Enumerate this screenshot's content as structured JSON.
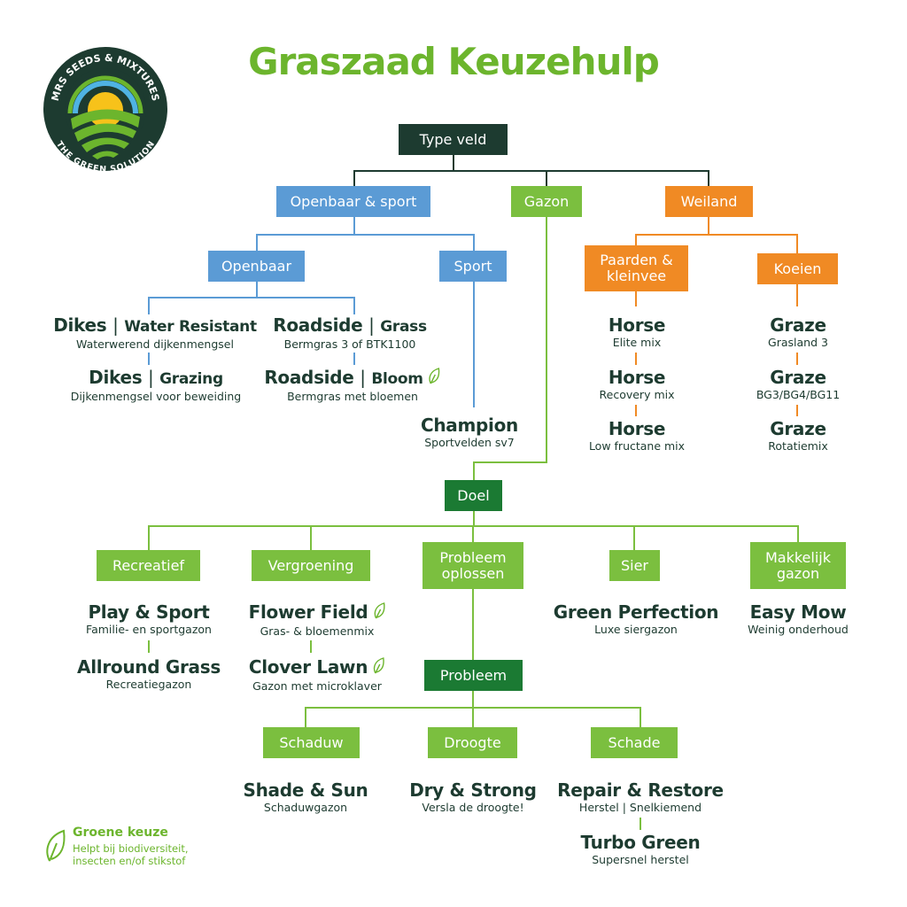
{
  "logo": {
    "text_top": "MRS SEEDS & MIXTURES",
    "text_bottom": "THE GREEN SOLUTION"
  },
  "title": "Graszaad Keuzehulp",
  "colors": {
    "dark": "#1d3b30",
    "blue": "#5b9bd5",
    "orange": "#f08a24",
    "light_green": "#7bbf3f",
    "dark_green": "#1b7a33",
    "title_green": "#6cb52d"
  },
  "boxes": {
    "type_veld": "Type veld",
    "openbaar_sport": "Openbaar & sport",
    "gazon": "Gazon",
    "weiland": "Weiland",
    "openbaar": "Openbaar",
    "sport": "Sport",
    "paarden": "Paarden & kleinvee",
    "koeien": "Koeien",
    "doel": "Doel",
    "recreatief": "Recreatief",
    "vergroening": "Vergroening",
    "probleem_oplossen": "Probleem oplossen",
    "sier": "Sier",
    "makkelijk": "Makkelijk gazon",
    "probleem": "Probleem",
    "schaduw": "Schaduw",
    "droogte": "Droogte",
    "schade": "Schade"
  },
  "products": {
    "dikes_wr": {
      "title": "Dikes",
      "suffix": "Water Resistant",
      "sub": "Waterwerend dijkenmengsel"
    },
    "dikes_gr": {
      "title": "Dikes",
      "suffix": "Grazing",
      "sub": "Dijkenmengsel voor beweiding"
    },
    "road_grass": {
      "title": "Roadside",
      "suffix": "Grass",
      "sub": "Bermgras 3 of BTK1100"
    },
    "road_bloom": {
      "title": "Roadside",
      "suffix": "Bloom",
      "sub": "Bermgras met bloemen",
      "green": true
    },
    "champion": {
      "title": "Champion",
      "sub": "Sportvelden sv7"
    },
    "horse1": {
      "title": "Horse",
      "sub": "Elite mix"
    },
    "horse2": {
      "title": "Horse",
      "sub": "Recovery mix"
    },
    "horse3": {
      "title": "Horse",
      "sub": "Low fructane mix"
    },
    "graze1": {
      "title": "Graze",
      "sub": "Grasland 3"
    },
    "graze2": {
      "title": "Graze",
      "sub": "BG3/BG4/BG11"
    },
    "graze3": {
      "title": "Graze",
      "sub": "Rotatiemix"
    },
    "play": {
      "title": "Play & Sport",
      "sub": "Familie- en sportgazon"
    },
    "allround": {
      "title": "Allround Grass",
      "sub": "Recreatiegazon"
    },
    "flower": {
      "title": "Flower Field",
      "sub": "Gras- & bloemenmix",
      "green": true
    },
    "clover": {
      "title": "Clover Lawn",
      "sub": "Gazon met microklaver",
      "green": true
    },
    "perfection": {
      "title": "Green Perfection",
      "sub": "Luxe siergazon"
    },
    "easymow": {
      "title": "Easy Mow",
      "sub": "Weinig onderhoud"
    },
    "shade": {
      "title": "Shade & Sun",
      "sub": "Schaduwgazon"
    },
    "dry": {
      "title": "Dry & Strong",
      "sub": "Versla de droogte!"
    },
    "repair": {
      "title": "Repair & Restore",
      "sub": "Herstel | Snelkiemend"
    },
    "turbo": {
      "title": "Turbo Green",
      "sub": "Supersnel herstel"
    }
  },
  "legend": {
    "icon": "leaf-icon",
    "heading": "Groene keuze",
    "line1": "Helpt bij biodiversiteit,",
    "line2": "insecten en/of stikstof"
  }
}
